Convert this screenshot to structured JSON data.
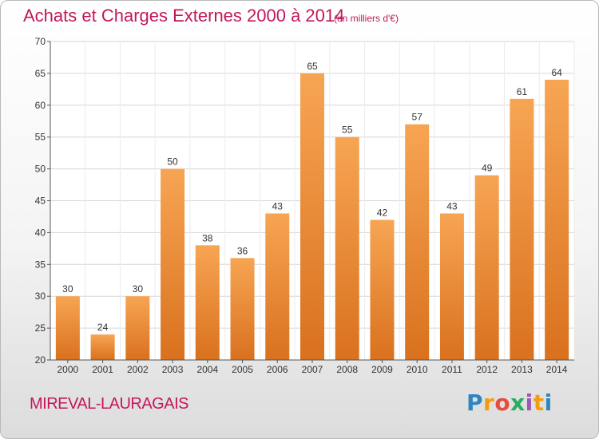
{
  "chart_data": {
    "type": "bar",
    "title": "Achats et Charges Externes 2000 à 2014",
    "subtitle": "(en milliers d'€)",
    "categories": [
      "2000",
      "2001",
      "2002",
      "2003",
      "2004",
      "2005",
      "2006",
      "2007",
      "2008",
      "2009",
      "2010",
      "2011",
      "2012",
      "2013",
      "2014"
    ],
    "values": [
      30,
      24,
      30,
      50,
      38,
      36,
      43,
      65,
      55,
      42,
      57,
      43,
      49,
      61,
      64
    ],
    "ylim": [
      20,
      70
    ],
    "yticks": [
      20,
      25,
      30,
      35,
      40,
      45,
      50,
      55,
      60,
      65,
      70
    ],
    "grid": true,
    "bar_color": "#f0913a",
    "xlabel": "",
    "ylabel": ""
  },
  "footer": {
    "commune": "MIREVAL-LAURAGAIS",
    "logo_letters": [
      "P",
      "r",
      "o",
      "x",
      "i",
      "t",
      "i"
    ],
    "logo_colors": [
      "#2e86c1",
      "#f39c12",
      "#e74c3c",
      "#27ae60",
      "#9b59b6",
      "#f39c12",
      "#2e86c1"
    ]
  }
}
